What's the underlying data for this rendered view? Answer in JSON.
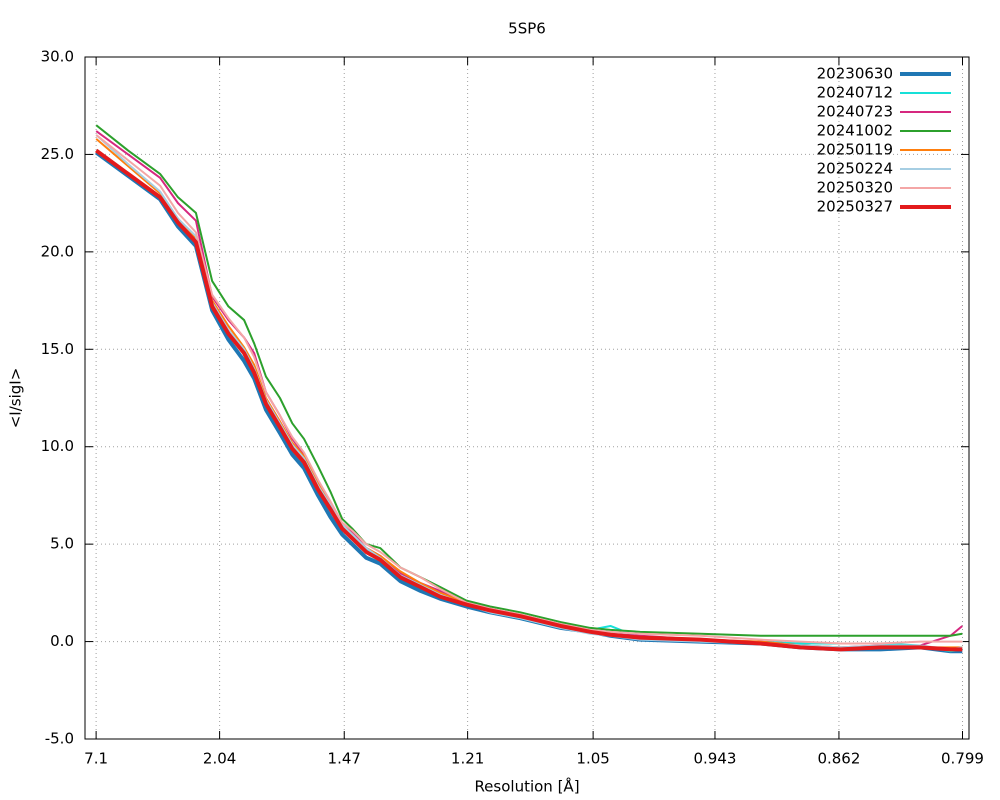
{
  "chart_data": {
    "type": "line",
    "title": "5SP6",
    "xlabel": "Resolution [Å]",
    "ylabel": "<I/sigI>",
    "xlim": [
      0.0,
      1.578
    ],
    "ylim": [
      -5,
      30
    ],
    "xticks": [
      {
        "value": 0.01984,
        "label": "7.1"
      },
      {
        "value": 0.24029,
        "label": "2.04"
      },
      {
        "value": 0.46277,
        "label": "1.47"
      },
      {
        "value": 0.68301,
        "label": "1.21"
      },
      {
        "value": 0.90703,
        "label": "1.05"
      },
      {
        "value": 1.12454,
        "label": "0.943"
      },
      {
        "value": 1.34583,
        "label": "0.862"
      },
      {
        "value": 1.56641,
        "label": "0.799"
      }
    ],
    "yticks": [
      {
        "value": -5,
        "label": "-5.0"
      },
      {
        "value": 0,
        "label": "0.0"
      },
      {
        "value": 5,
        "label": "5.0"
      },
      {
        "value": 10,
        "label": "10.0"
      },
      {
        "value": 15,
        "label": "15.0"
      },
      {
        "value": 20,
        "label": "20.0"
      },
      {
        "value": 25,
        "label": "25.0"
      },
      {
        "value": 30,
        "label": "30.0"
      }
    ],
    "grid": true,
    "legend": "top-right",
    "x": [
      0.02,
      0.077,
      0.134,
      0.166,
      0.198,
      0.227,
      0.256,
      0.284,
      0.302,
      0.323,
      0.348,
      0.37,
      0.391,
      0.416,
      0.438,
      0.459,
      0.477,
      0.502,
      0.527,
      0.563,
      0.599,
      0.634,
      0.681,
      0.723,
      0.777,
      0.849,
      0.902,
      0.938,
      0.991,
      1.099,
      1.206,
      1.277,
      1.349,
      1.42,
      1.491,
      1.545,
      1.566
    ],
    "series": [
      {
        "name": "20230630",
        "color": "#1f77b4",
        "width": 4,
        "values": [
          25.1,
          23.9,
          22.7,
          21.3,
          20.3,
          17.0,
          15.5,
          14.4,
          13.5,
          11.9,
          10.7,
          9.6,
          8.9,
          7.5,
          6.4,
          5.5,
          5.0,
          4.3,
          4.0,
          3.1,
          2.6,
          2.2,
          1.8,
          1.5,
          1.2,
          0.7,
          0.5,
          0.3,
          0.1,
          0.0,
          -0.1,
          -0.3,
          -0.4,
          -0.4,
          -0.3,
          -0.5,
          -0.5
        ]
      },
      {
        "name": "20240712",
        "color": "#17e0d8",
        "width": 2,
        "values": [
          25.2,
          24.0,
          22.8,
          21.5,
          20.6,
          17.3,
          15.9,
          14.9,
          13.9,
          12.3,
          11.1,
          10.0,
          9.3,
          7.9,
          6.9,
          5.9,
          5.4,
          4.7,
          4.2,
          3.3,
          2.8,
          2.3,
          1.9,
          1.5,
          1.2,
          0.7,
          0.6,
          0.8,
          0.2,
          0.0,
          0.0,
          -0.1,
          -0.1,
          -0.1,
          -0.2,
          -0.5,
          -0.4
        ]
      },
      {
        "name": "20240723",
        "color": "#d6287f",
        "width": 2,
        "values": [
          26.2,
          25.0,
          23.8,
          22.5,
          21.6,
          17.7,
          16.5,
          15.6,
          14.8,
          12.8,
          11.6,
          10.4,
          9.6,
          8.2,
          7.1,
          6.0,
          5.6,
          4.8,
          4.4,
          3.5,
          3.0,
          2.6,
          2.0,
          1.7,
          1.3,
          0.9,
          0.6,
          0.4,
          0.3,
          0.1,
          0.0,
          -0.2,
          -0.3,
          -0.2,
          -0.2,
          0.3,
          0.8
        ]
      },
      {
        "name": "20241002",
        "color": "#2ca02c",
        "width": 2,
        "values": [
          26.5,
          25.2,
          24.0,
          22.8,
          22.0,
          18.5,
          17.2,
          16.5,
          15.3,
          13.6,
          12.5,
          11.2,
          10.4,
          9.0,
          7.7,
          6.3,
          5.8,
          5.0,
          4.8,
          3.8,
          3.3,
          2.8,
          2.1,
          1.8,
          1.5,
          1.0,
          0.7,
          0.6,
          0.5,
          0.4,
          0.3,
          0.3,
          0.3,
          0.3,
          0.3,
          0.3,
          0.4
        ]
      },
      {
        "name": "20250119",
        "color": "#ff7f0e",
        "width": 2,
        "values": [
          25.8,
          24.4,
          23.0,
          21.7,
          20.7,
          17.5,
          16.2,
          15.1,
          14.2,
          12.5,
          11.3,
          10.2,
          9.5,
          8.1,
          7.0,
          6.0,
          5.5,
          4.8,
          4.4,
          3.6,
          3.0,
          2.5,
          2.0,
          1.6,
          1.3,
          0.8,
          0.5,
          0.35,
          0.2,
          0.1,
          0.0,
          -0.2,
          -0.3,
          -0.3,
          -0.3,
          -0.3,
          -0.3
        ]
      },
      {
        "name": "20250224",
        "color": "#a6cee3",
        "width": 2,
        "values": [
          26.0,
          24.5,
          23.1,
          21.7,
          20.8,
          17.4,
          16.0,
          15.0,
          14.0,
          12.4,
          11.2,
          10.1,
          9.4,
          8.0,
          7.0,
          6.0,
          5.5,
          4.8,
          4.3,
          3.4,
          2.9,
          2.4,
          1.9,
          1.5,
          1.2,
          0.7,
          0.4,
          0.3,
          0.1,
          0.0,
          -0.1,
          -0.2,
          -0.3,
          -0.2,
          -0.2,
          -0.4,
          -0.3
        ]
      },
      {
        "name": "20250320",
        "color": "#f4a6a6",
        "width": 2,
        "values": [
          26.0,
          24.7,
          23.4,
          22.0,
          21.0,
          17.8,
          16.6,
          15.6,
          14.6,
          12.8,
          11.6,
          10.5,
          9.7,
          8.3,
          7.2,
          6.1,
          5.7,
          5.0,
          4.6,
          3.8,
          3.3,
          2.7,
          2.0,
          1.7,
          1.4,
          0.9,
          0.6,
          0.5,
          0.4,
          0.3,
          0.1,
          0.0,
          -0.1,
          -0.1,
          0.0,
          0.0,
          0.0
        ]
      },
      {
        "name": "20250327",
        "color": "#e31a1c",
        "width": 4,
        "values": [
          25.2,
          24.0,
          22.8,
          21.5,
          20.5,
          17.2,
          15.8,
          14.8,
          13.8,
          12.2,
          11.0,
          9.9,
          9.2,
          7.8,
          6.8,
          5.8,
          5.3,
          4.6,
          4.2,
          3.3,
          2.8,
          2.3,
          1.9,
          1.6,
          1.3,
          0.8,
          0.5,
          0.35,
          0.2,
          0.1,
          -0.1,
          -0.3,
          -0.4,
          -0.3,
          -0.3,
          -0.4,
          -0.4
        ]
      }
    ]
  }
}
